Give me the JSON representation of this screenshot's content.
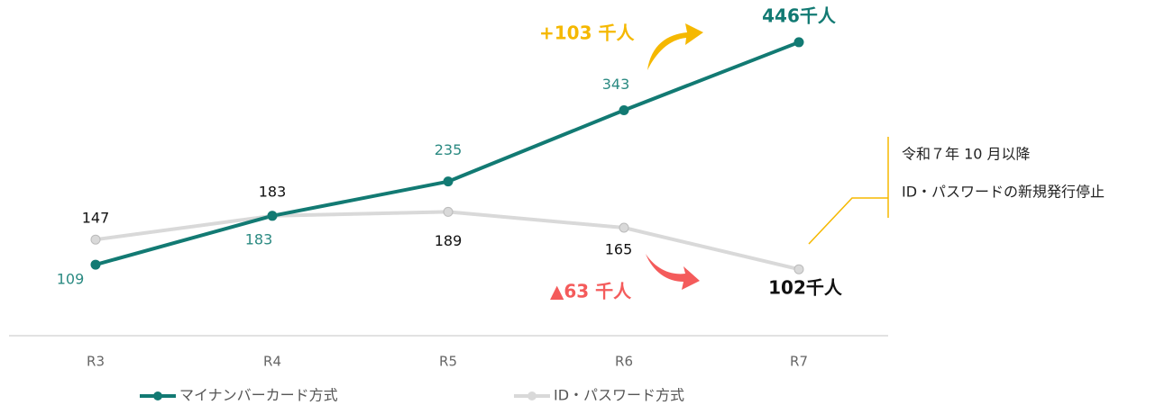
{
  "chart_data": {
    "type": "line",
    "categories": [
      "R3",
      "R4",
      "R5",
      "R6",
      "R7"
    ],
    "series": [
      {
        "name": "マイナンバーカード方式",
        "color": "#127a73",
        "values": [
          109,
          183,
          235,
          343,
          446
        ],
        "value_labels": [
          "109",
          "183",
          "235",
          "343",
          "446千人"
        ]
      },
      {
        "name": "ID・パスワード方式",
        "color": "#d9d9d9",
        "values": [
          147,
          183,
          189,
          165,
          102
        ],
        "value_labels": [
          "147",
          "183",
          "189",
          "165",
          "102千人"
        ]
      }
    ],
    "ylim": [
      0,
      510
    ],
    "annotations": [
      "+103 千人",
      "▲63 千人",
      "令和７年 10 月以降",
      "ID・パスワードの新規発行停止"
    ]
  }
}
